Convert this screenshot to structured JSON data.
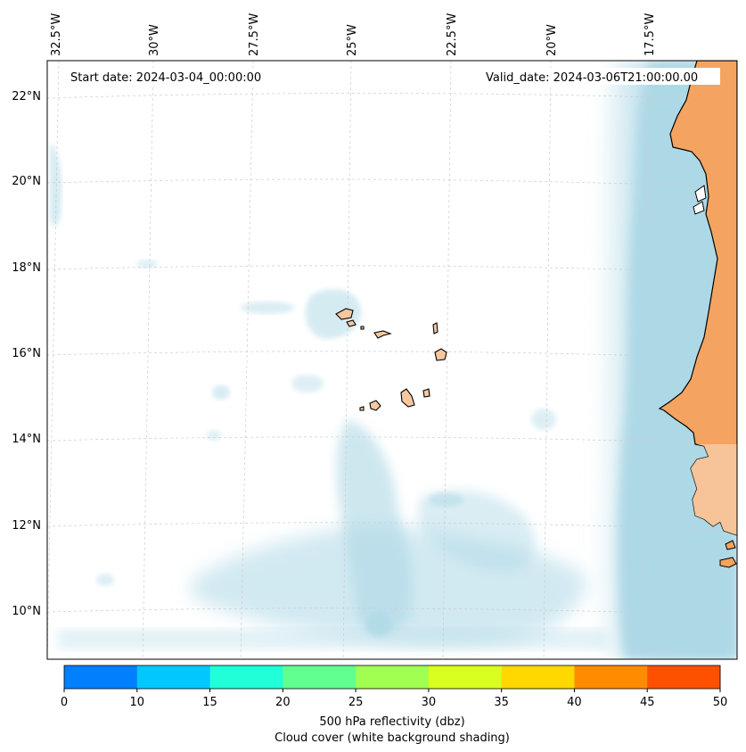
{
  "map": {
    "start_date": "Start date: 2024-03-04_00:00:00",
    "valid_date": "Valid_date: 2024-03-06T21:00:00.00",
    "longitude_labels": [
      "32.5°W",
      "30°W",
      "27.5°W",
      "25°W",
      "22.5°W",
      "20°W",
      "17.5°W"
    ],
    "latitude_labels": [
      "22°N",
      "20°N",
      "18°N",
      "16°N",
      "14°N",
      "12°N",
      "10°N"
    ],
    "colors": {
      "land": "#f4a460",
      "land_covered": "#f7c8a0",
      "cloud": "#add8e6",
      "coastline": "#000000",
      "grid": "#cccccc"
    }
  },
  "colorbar": {
    "ticks": [
      "0",
      "10",
      "15",
      "20",
      "25",
      "30",
      "35",
      "40",
      "45",
      "50"
    ],
    "colors": [
      "#0080ff",
      "#00c8ff",
      "#20ffd8",
      "#60ff90",
      "#a0ff50",
      "#d8ff20",
      "#ffd800",
      "#ff8c00",
      "#ff5000"
    ],
    "label_line1": "500 hPa reflectivity (dbz)",
    "label_line2": "Cloud cover (white background shading)"
  }
}
